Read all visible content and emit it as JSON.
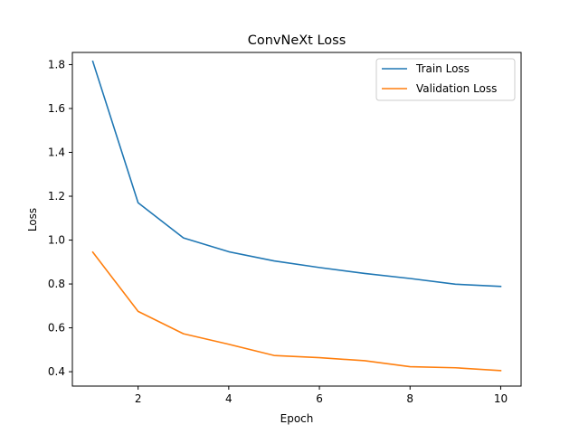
{
  "chart_data": {
    "type": "line",
    "title": "ConvNeXt Loss",
    "xlabel": "Epoch",
    "ylabel": "Loss",
    "x": [
      1,
      2,
      3,
      4,
      5,
      6,
      7,
      8,
      9,
      10
    ],
    "xlim": [
      0.55,
      10.45
    ],
    "ylim": [
      0.3345,
      1.8555
    ],
    "xticks": [
      2,
      4,
      6,
      8,
      10
    ],
    "yticks": [
      0.4,
      0.6,
      0.8,
      1.0,
      1.2,
      1.4,
      1.6,
      1.8
    ],
    "grid": false,
    "legend_position": "top-right",
    "series": [
      {
        "name": "Train Loss",
        "color": "#1f77b4",
        "values": [
          1.815,
          1.17,
          1.01,
          0.947,
          0.905,
          0.875,
          0.848,
          0.825,
          0.799,
          0.789
        ]
      },
      {
        "name": "Validation Loss",
        "color": "#ff7f0e",
        "values": [
          0.945,
          0.675,
          0.573,
          0.525,
          0.474,
          0.464,
          0.45,
          0.423,
          0.418,
          0.405
        ]
      }
    ]
  }
}
